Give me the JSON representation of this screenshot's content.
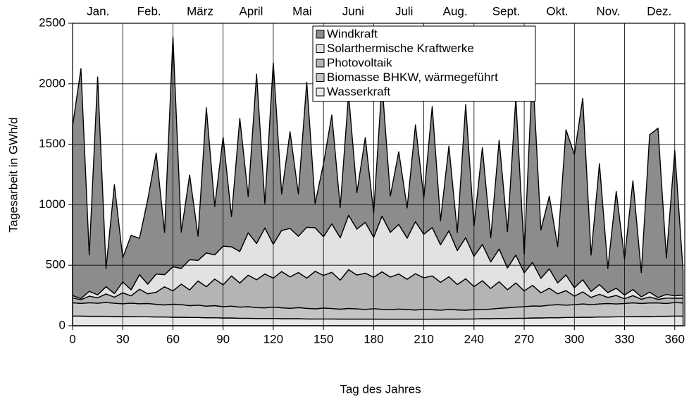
{
  "chart_data": {
    "type": "stacked-area",
    "xlabel": "Tag des Jahres",
    "ylabel": "Tagesarbeit in GWh/d",
    "months": [
      "Jan.",
      "Feb.",
      "März",
      "April",
      "Mai",
      "Juni",
      "Juli",
      "Aug.",
      "Sept.",
      "Okt.",
      "Nov.",
      "Dez."
    ],
    "x": [
      0,
      5,
      10,
      15,
      20,
      25,
      30,
      35,
      40,
      45,
      50,
      55,
      60,
      65,
      70,
      75,
      80,
      85,
      90,
      95,
      100,
      105,
      110,
      115,
      120,
      125,
      130,
      135,
      140,
      145,
      150,
      155,
      160,
      165,
      170,
      175,
      180,
      185,
      190,
      195,
      200,
      205,
      210,
      215,
      220,
      225,
      230,
      235,
      240,
      245,
      250,
      255,
      260,
      265,
      270,
      275,
      280,
      285,
      290,
      295,
      300,
      305,
      310,
      315,
      320,
      325,
      330,
      335,
      340,
      345,
      350,
      355,
      360,
      365
    ],
    "xlim": [
      0,
      366
    ],
    "xticks": [
      0,
      30,
      60,
      90,
      120,
      150,
      180,
      210,
      240,
      270,
      300,
      330,
      360
    ],
    "ylim": [
      0,
      2500
    ],
    "yticks": [
      0,
      500,
      1000,
      1500,
      2000,
      2500
    ],
    "grid": true,
    "series": [
      {
        "name": "Windkraft",
        "color": "#8c8c8c",
        "values": [
          1400,
          1900,
          300,
          1800,
          150,
          900,
          200,
          450,
          300,
          700,
          1000,
          350,
          1900,
          300,
          700,
          200,
          1200,
          400,
          900,
          250,
          1100,
          300,
          1400,
          200,
          1500,
          300,
          800,
          350,
          1200,
          200,
          600,
          900,
          250,
          1000,
          300,
          700,
          200,
          1100,
          300,
          600,
          250,
          800,
          300,
          1000,
          200,
          700,
          150,
          1100,
          250,
          800,
          200,
          900,
          300,
          1300,
          150,
          1600,
          400,
          600,
          300,
          1200,
          1100,
          1500,
          300,
          1000,
          200,
          800,
          300,
          900,
          200,
          1300,
          1400,
          300,
          1200,
          200
        ]
      },
      {
        "name": "Solarthermische Kraftwerke",
        "color": "#e2e2e2",
        "values": [
          20,
          10,
          40,
          25,
          60,
          30,
          90,
          50,
          120,
          80,
          150,
          100,
          200,
          130,
          250,
          170,
          280,
          200,
          320,
          240,
          260,
          350,
          300,
          380,
          280,
          340,
          400,
          300,
          420,
          360,
          320,
          400,
          350,
          450,
          380,
          420,
          330,
          460,
          370,
          410,
          340,
          430,
          360,
          400,
          310,
          380,
          280,
          340,
          250,
          300,
          220,
          270,
          180,
          230,
          150,
          190,
          120,
          160,
          90,
          130,
          70,
          100,
          50,
          80,
          40,
          60,
          30,
          50,
          20,
          40,
          15,
          30,
          20,
          25
        ]
      },
      {
        "name": "Photovoltaik",
        "color": "#b4b4b4",
        "values": [
          40,
          30,
          55,
          45,
          70,
          50,
          90,
          60,
          120,
          80,
          100,
          150,
          110,
          170,
          130,
          200,
          160,
          220,
          180,
          250,
          200,
          260,
          230,
          280,
          240,
          300,
          260,
          290,
          250,
          310,
          270,
          300,
          240,
          320,
          280,
          300,
          260,
          310,
          270,
          290,
          250,
          300,
          260,
          280,
          230,
          270,
          210,
          260,
          190,
          240,
          170,
          220,
          150,
          200,
          130,
          170,
          110,
          140,
          90,
          120,
          70,
          100,
          60,
          80,
          50,
          70,
          40,
          60,
          35,
          50,
          30,
          45,
          35,
          40
        ]
      },
      {
        "name": "Biomasse BHKW, wärmegeführt",
        "color": "#c4c4c4",
        "values": [
          110,
          105,
          112,
          108,
          115,
          110,
          106,
          112,
          108,
          110,
          105,
          100,
          108,
          104,
          98,
          102,
          96,
          100,
          94,
          98,
          92,
          96,
          90,
          88,
          94,
          90,
          86,
          92,
          88,
          84,
          90,
          86,
          82,
          88,
          84,
          80,
          86,
          82,
          78,
          84,
          80,
          76,
          82,
          78,
          74,
          80,
          76,
          72,
          78,
          74,
          80,
          84,
          88,
          92,
          96,
          100,
          98,
          104,
          108,
          102,
          106,
          110,
          104,
          108,
          112,
          106,
          110,
          114,
          108,
          112,
          110,
          106,
          112,
          108
        ]
      },
      {
        "name": "Wasserkraft",
        "color": "#e8e8e8",
        "values": [
          80,
          80,
          78,
          78,
          78,
          76,
          76,
          75,
          74,
          74,
          72,
          72,
          70,
          70,
          68,
          68,
          66,
          66,
          64,
          64,
          62,
          62,
          60,
          60,
          60,
          58,
          58,
          58,
          56,
          56,
          56,
          56,
          55,
          55,
          55,
          55,
          55,
          54,
          54,
          54,
          54,
          54,
          54,
          54,
          55,
          55,
          55,
          56,
          56,
          58,
          58,
          60,
          60,
          62,
          62,
          64,
          64,
          66,
          66,
          68,
          68,
          70,
          70,
          72,
          72,
          74,
          74,
          75,
          76,
          76,
          78,
          78,
          80,
          80
        ]
      }
    ]
  }
}
